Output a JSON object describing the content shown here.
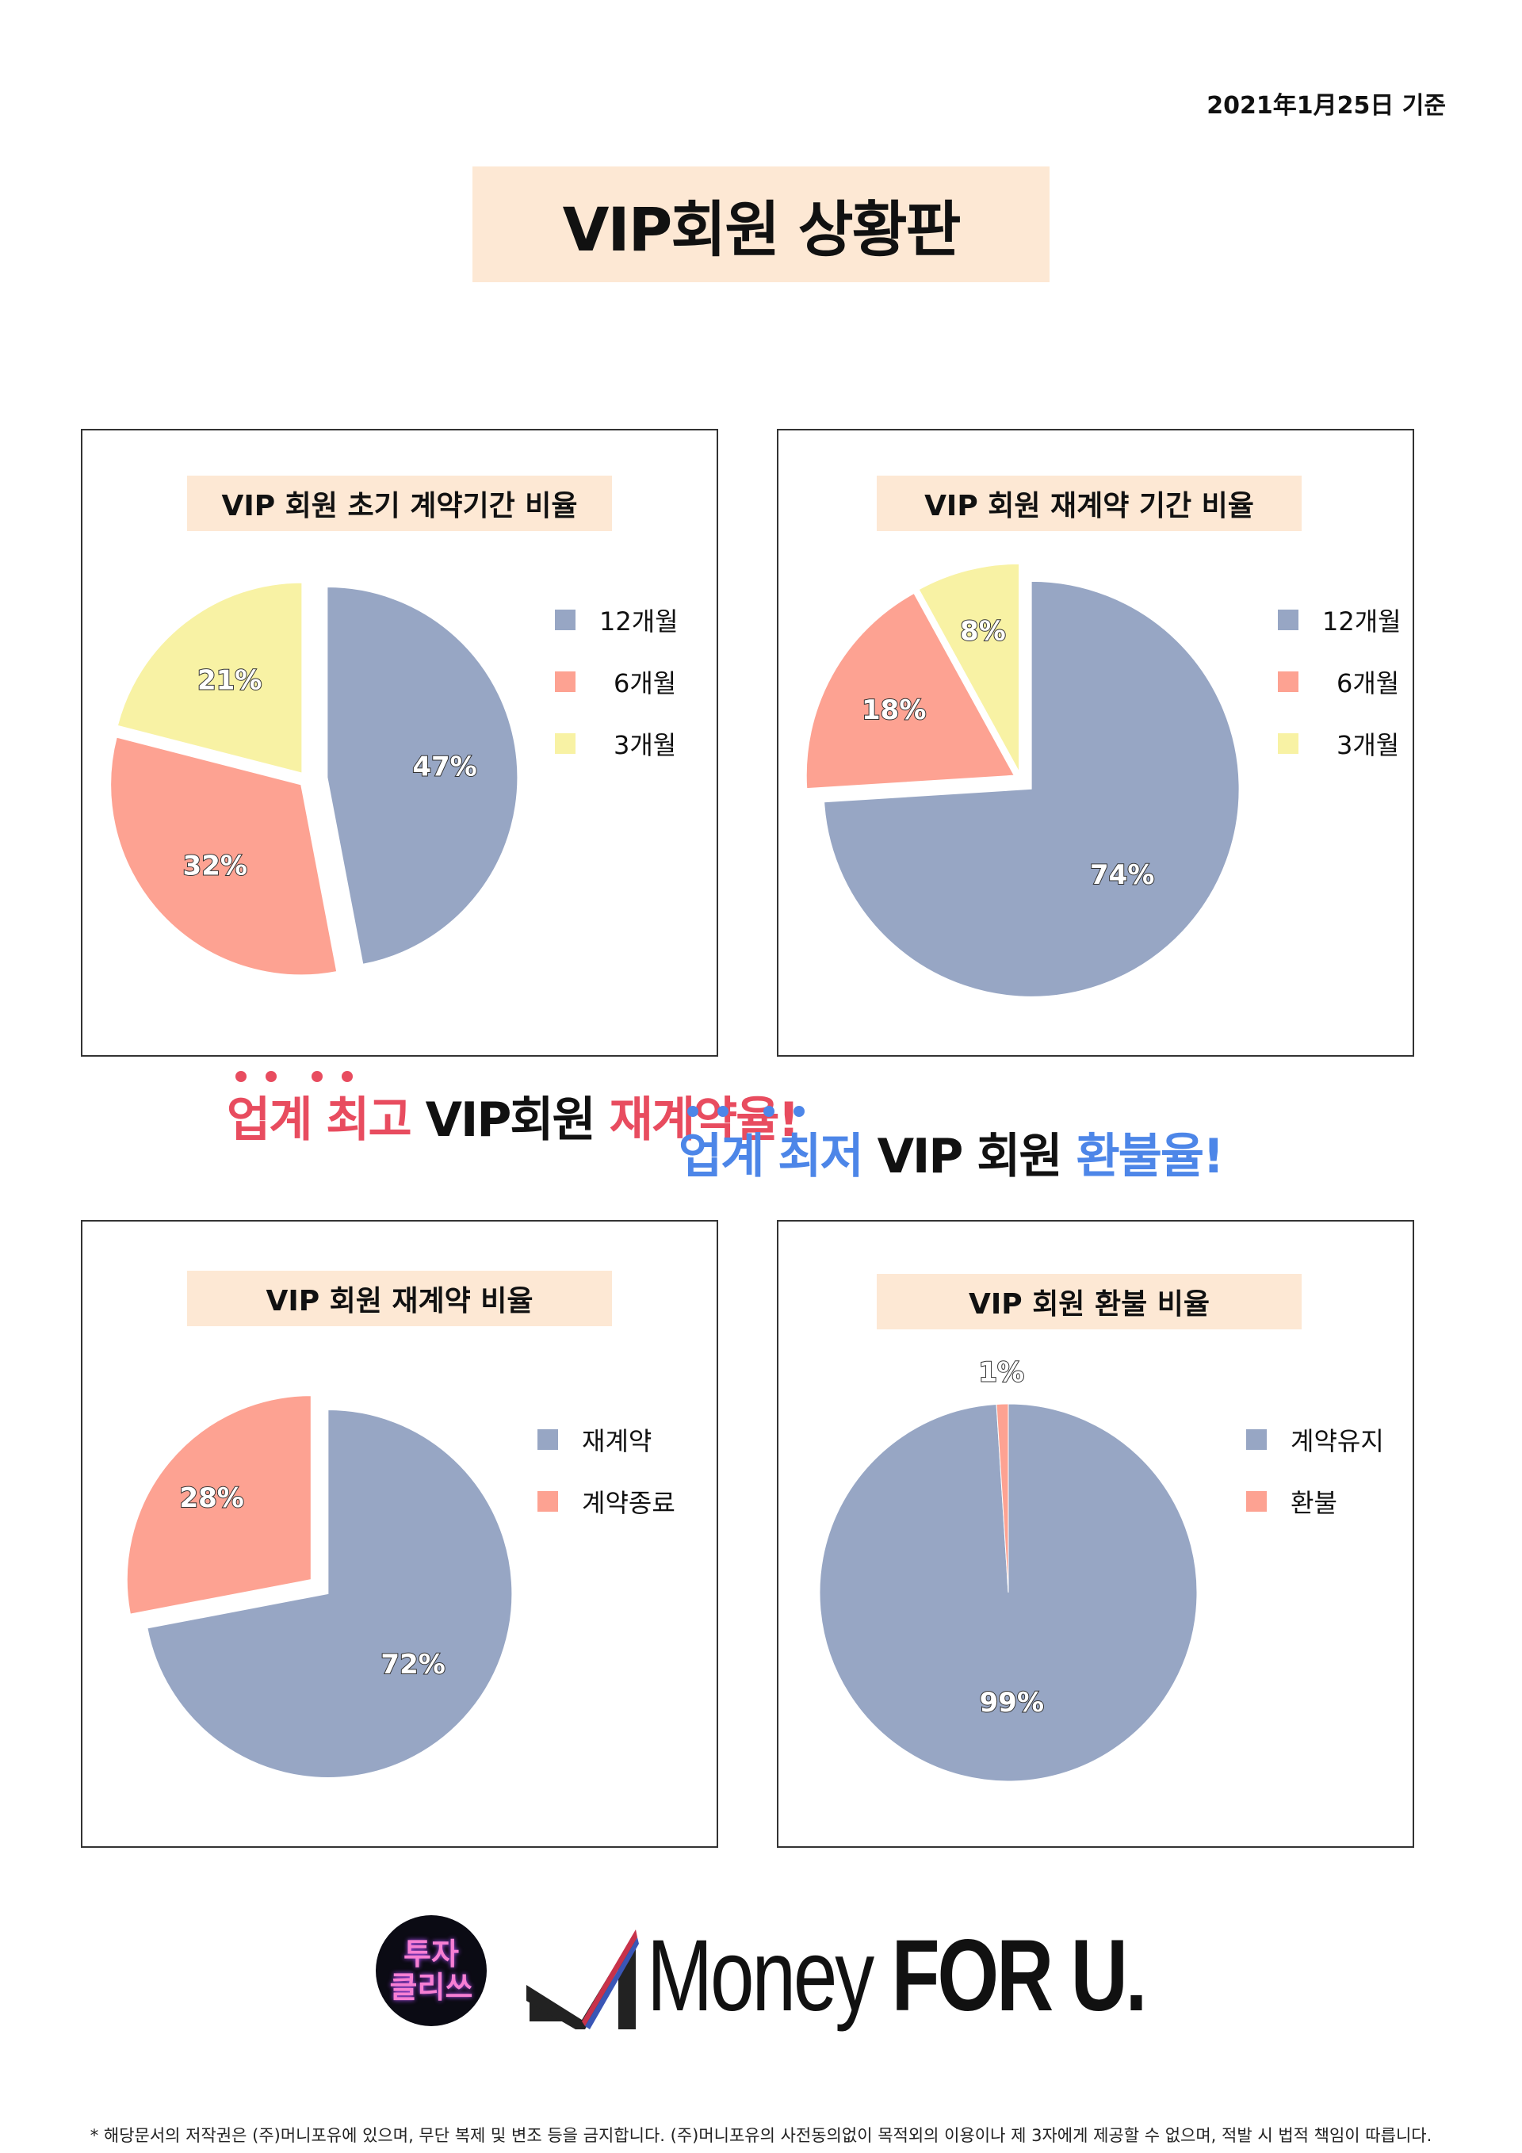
{
  "date": "2021年1月25日 기준",
  "title": "VIP회원 상황판",
  "colors": {
    "blue": "#97a6c4",
    "red": "#fda292",
    "yellow": "#f8f2a4",
    "title_bg": "#fde8d4",
    "slogan_red": "#e84c5f",
    "slogan_blue": "#4d86e8"
  },
  "slogans": {
    "red": {
      "a": "업계",
      "b": "최고",
      "c": "VIP회원",
      "d": "재계약율!"
    },
    "blue": {
      "a": "업계",
      "b": "최저",
      "c": "VIP 회원",
      "d": "환불율!"
    }
  },
  "chart_data": [
    {
      "type": "pie",
      "title": "VIP 회원 초기 계약기간 비율",
      "categories": [
        "12개월",
        "6개월",
        "3개월"
      ],
      "values": [
        47,
        32,
        21
      ],
      "labels": [
        "47%",
        "32%",
        "21%"
      ],
      "colors": [
        "#97a6c4",
        "#fda292",
        "#f8f2a4"
      ],
      "legend": "right"
    },
    {
      "type": "pie",
      "title": "VIP 회원 재계약 기간 비율",
      "categories": [
        "12개월",
        "6개월",
        "3개월"
      ],
      "values": [
        74,
        18,
        8
      ],
      "labels": [
        "74%",
        "18%",
        "8%"
      ],
      "colors": [
        "#97a6c4",
        "#fda292",
        "#f8f2a4"
      ],
      "legend": "right"
    },
    {
      "type": "pie",
      "title": "VIP 회원 재계약 비율",
      "categories": [
        "재계약",
        "계약종료"
      ],
      "values": [
        72,
        28
      ],
      "labels": [
        "72%",
        "28%"
      ],
      "colors": [
        "#97a6c4",
        "#fda292"
      ],
      "legend": "right"
    },
    {
      "type": "pie",
      "title": "VIP 회원 환불 비율",
      "categories": [
        "계약유지",
        "환불"
      ],
      "values": [
        99,
        1
      ],
      "labels": [
        "99%",
        "1%"
      ],
      "colors": [
        "#97a6c4",
        "#fda292"
      ],
      "legend": "right"
    }
  ],
  "logo": {
    "badge_line1": "투자",
    "badge_line2": "클리쓰",
    "brand_light": "Money",
    "brand_bold": "FOR U."
  },
  "footer": "* 해당문서의 저작권은 (주)머니포유에 있으며, 무단 복제 및 변조 등을 금지합니다. (주)머니포유의 사전동의없이 목적외의 이용이나 제 3자에게 제공할 수 없으며, 적발 시 법적 책임이 따릅니다."
}
